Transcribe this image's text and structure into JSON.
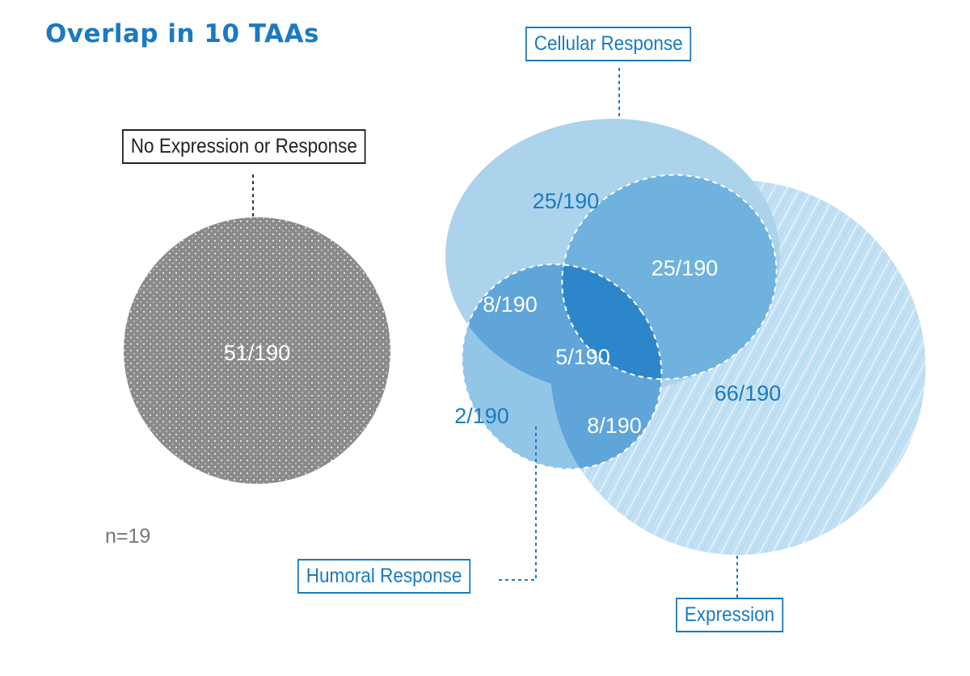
{
  "title": "Overlap in 10 TAAs",
  "sets": {
    "no_expression": {
      "label": "No Expression or Response",
      "value": "51/190"
    },
    "cellular": {
      "label": "Cellular Response"
    },
    "humoral": {
      "label": "Humoral Response"
    },
    "expression": {
      "label": "Expression"
    }
  },
  "regions": {
    "cellular_only": "25/190",
    "cellular_expression": "25/190",
    "cellular_humoral": "8/190",
    "all_three": "5/190",
    "humoral_only": "2/190",
    "humoral_expression": "8/190",
    "expression_only": "66/190"
  },
  "n_label": "n=19",
  "colors": {
    "title": "#1a7ac2",
    "label_blue": "#1a7ac2",
    "gray_circle": "#8c8c8c",
    "cellular_fill": "#acd3ec",
    "expression_fill": "#c2e0f3",
    "overlap_fill": "#6fb2de",
    "humoral_overlap_fill": "#5fa5d9",
    "center_fill": "#2c86c9",
    "humoral_only_fill": "#92c6e7"
  }
}
